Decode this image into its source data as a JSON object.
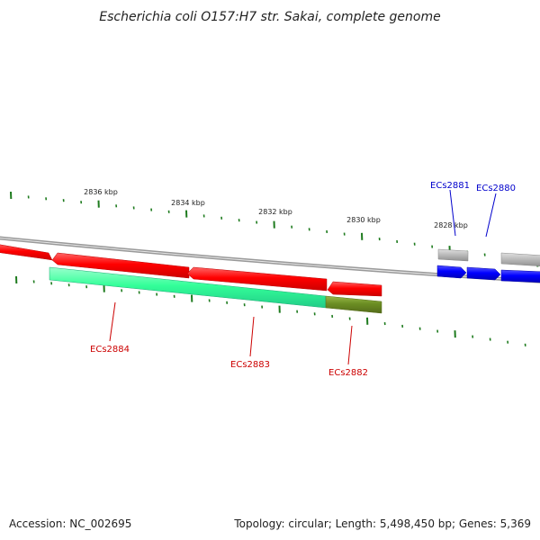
{
  "title": "Escherichia coli O157:H7 str. Sakai, complete genome",
  "footer": {
    "accession": "Accession: NC_002695",
    "summary": "Topology: circular; Length: 5,498,450 bp; Genes: 5,369"
  },
  "scale_labels": [
    "2836 kbp",
    "2834 kbp",
    "2832 kbp",
    "2830 kbp",
    "2828 kbp"
  ],
  "gene_labels": [
    {
      "label": "ECs2881",
      "color": "#0000cc"
    },
    {
      "label": "ECs2880",
      "color": "#0000cc"
    },
    {
      "label": "ECs2884",
      "color": "#cc0000"
    },
    {
      "label": "ECs2883",
      "color": "#cc0000"
    },
    {
      "label": "ECs2882",
      "color": "#cc0000"
    }
  ],
  "colors": {
    "backbone": "#888888",
    "reverse_cds": "#ff0000",
    "forward_cds": "#0000ff",
    "gray_feature": "#b4b4b4",
    "cog_teal": "#33ff99",
    "cog_olive": "#6b8e23",
    "tick": "#1e7b1e"
  }
}
